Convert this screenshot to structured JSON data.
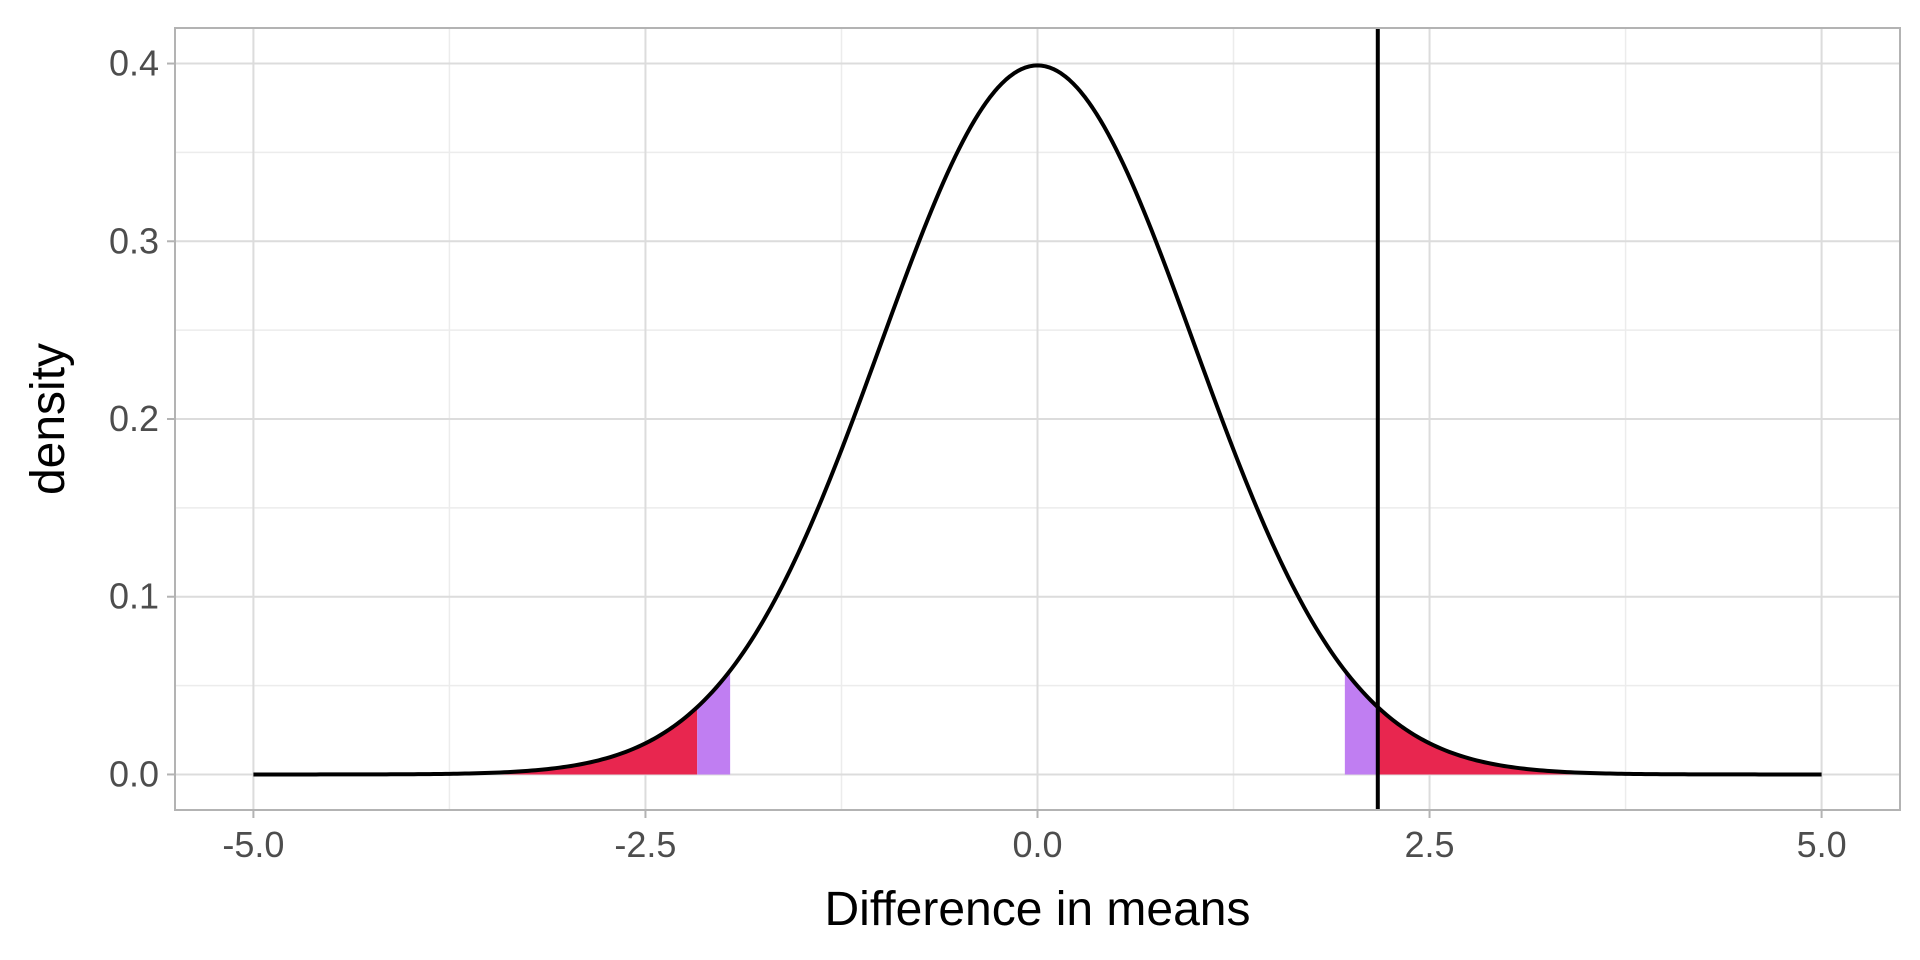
{
  "chart_data": {
    "type": "area",
    "title": "",
    "xlabel": "Difference in means",
    "ylabel": "density",
    "xlim": [
      -5.5,
      5.5
    ],
    "ylim": [
      -0.02,
      0.42
    ],
    "x_ticks": [
      -5.0,
      -2.5,
      0.0,
      2.5,
      5.0
    ],
    "x_tick_labels": [
      "-5.0",
      "-2.5",
      "0.0",
      "2.5",
      "5.0"
    ],
    "y_ticks": [
      0.0,
      0.1,
      0.2,
      0.3,
      0.4
    ],
    "y_tick_labels": [
      "0.0",
      "0.1",
      "0.2",
      "0.3",
      "0.4"
    ],
    "grid": true,
    "curve": {
      "distribution": "standard normal density",
      "x_range": [
        -5,
        5
      ],
      "color": "#000000"
    },
    "vertical_line": {
      "x": 2.17,
      "color": "#000000"
    },
    "shaded_regions": [
      {
        "x_from": -3.5,
        "x_to": -2.17,
        "color": "#e8264f"
      },
      {
        "x_from": -2.17,
        "x_to": -1.96,
        "color": "#c07ef2"
      },
      {
        "x_from": 1.96,
        "x_to": 2.17,
        "color": "#c07ef2"
      },
      {
        "x_from": 2.17,
        "x_to": 3.5,
        "color": "#e8264f"
      }
    ]
  }
}
